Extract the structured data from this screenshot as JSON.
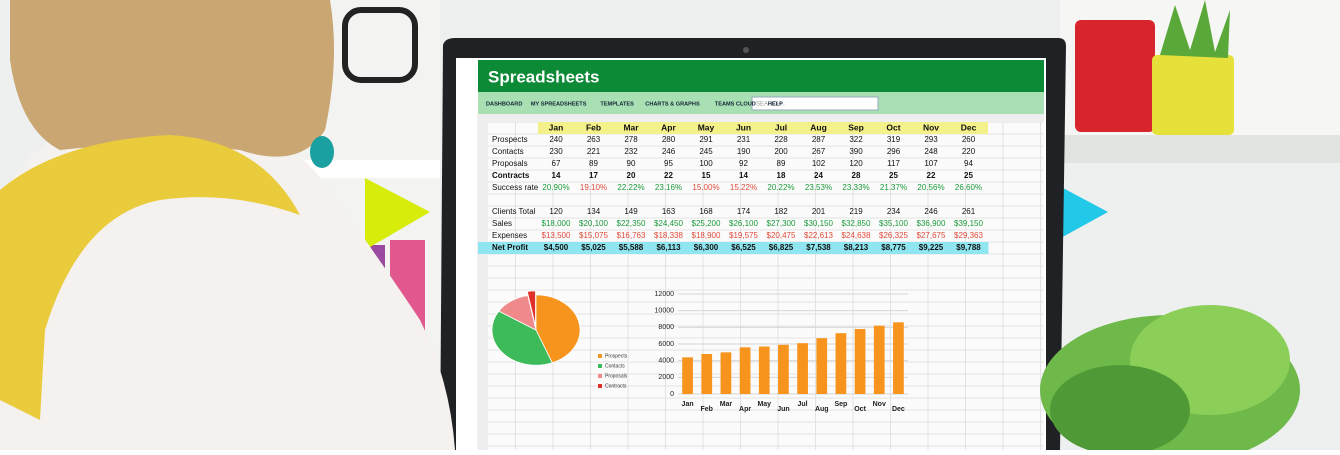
{
  "app": {
    "title": "Spreadsheets",
    "nav": [
      "DASHBOARD",
      "MY SPREADSHEETS",
      "TEMPLATES",
      "CHARTS & GRAPHS",
      "TEAMS CLOUD",
      "HELP"
    ],
    "search_placeholder": "SEARCH..."
  },
  "table": {
    "columns": [
      "Jan",
      "Feb",
      "Mar",
      "Apr",
      "May",
      "Jun",
      "Jul",
      "Aug",
      "Sep",
      "Oct",
      "Nov",
      "Dec"
    ],
    "rows": [
      {
        "label": "Prospects",
        "color": "#111111",
        "bold": false,
        "cells": [
          "240",
          "263",
          "278",
          "280",
          "291",
          "231",
          "228",
          "287",
          "322",
          "319",
          "293",
          "260"
        ]
      },
      {
        "label": "Contacts",
        "color": "#111111",
        "bold": false,
        "cells": [
          "230",
          "221",
          "232",
          "246",
          "245",
          "190",
          "200",
          "267",
          "390",
          "296",
          "248",
          "220"
        ]
      },
      {
        "label": "Proposals",
        "color": "#111111",
        "bold": false,
        "cells": [
          "67",
          "89",
          "90",
          "95",
          "100",
          "92",
          "89",
          "102",
          "120",
          "117",
          "107",
          "94"
        ]
      },
      {
        "label": "Contracts",
        "color": "#111111",
        "bold": true,
        "cells": [
          "14",
          "17",
          "20",
          "22",
          "15",
          "14",
          "18",
          "24",
          "28",
          "25",
          "22",
          "25"
        ]
      },
      {
        "label": "Success rate",
        "colors": [
          "#1a9a3a",
          "#e04a3a",
          "#1a9a3a",
          "#1a9a3a",
          "#e04a3a",
          "#e04a3a",
          "#1a9a3a",
          "#1a9a3a",
          "#1a9a3a",
          "#1a9a3a",
          "#1a9a3a",
          "#1a9a3a"
        ],
        "bold": false,
        "cells": [
          "20.90%",
          "19.10%",
          "22.22%",
          "23.16%",
          "15.00%",
          "15.22%",
          "20.22%",
          "23.53%",
          "23.33%",
          "21.37%",
          "20.56%",
          "26.60%"
        ]
      },
      {
        "label": "Clients Total",
        "color": "#111111",
        "bold": false,
        "gap": true,
        "cells": [
          "120",
          "134",
          "149",
          "163",
          "168",
          "174",
          "182",
          "201",
          "219",
          "234",
          "246",
          "261"
        ]
      },
      {
        "label": "Sales",
        "color": "#1a9a3a",
        "bold": false,
        "cells": [
          "$18,000",
          "$20,100",
          "$22,350",
          "$24,450",
          "$25,200",
          "$26,100",
          "$27,300",
          "$30,150",
          "$32,850",
          "$35,100",
          "$36,900",
          "$39,150"
        ]
      },
      {
        "label": "Expenses",
        "color": "#e04a3a",
        "bold": false,
        "cells": [
          "$13,500",
          "$15,075",
          "$16,763",
          "$18,338",
          "$18,900",
          "$19,575",
          "$20,475",
          "$22,613",
          "$24,638",
          "$26,325",
          "$27,675",
          "$29,363"
        ]
      },
      {
        "label": "Net Profit",
        "color": "#111111",
        "bold": true,
        "highlight": "#8fe6f0",
        "cells": [
          "$4,500",
          "$5,025",
          "$5,588",
          "$6,113",
          "$6,300",
          "$6,525",
          "$6,825",
          "$7,538",
          "$8,213",
          "$8,775",
          "$9,225",
          "$9,788"
        ]
      }
    ]
  },
  "pie": {
    "labels": [
      "Prospects",
      "Contacts",
      "Proposals",
      "Contracts"
    ],
    "values": [
      44,
      40,
      13,
      3
    ],
    "colors": [
      "#f7941d",
      "#3dba5a",
      "#f08a8a",
      "#e0302a"
    ]
  },
  "bar_chart": {
    "categories": [
      "Jan",
      "Feb",
      "Mar",
      "Apr",
      "May",
      "Jun",
      "Jul",
      "Aug",
      "Sep",
      "Oct",
      "Nov",
      "Dec"
    ],
    "values": [
      4400,
      4800,
      5000,
      5600,
      5700,
      5900,
      6100,
      6700,
      7300,
      7800,
      8200,
      8600
    ],
    "color": "#f7941d",
    "ylim": [
      0,
      12000
    ],
    "yticks": [
      0,
      2000,
      4000,
      6000,
      8000,
      10000,
      12000
    ]
  }
}
